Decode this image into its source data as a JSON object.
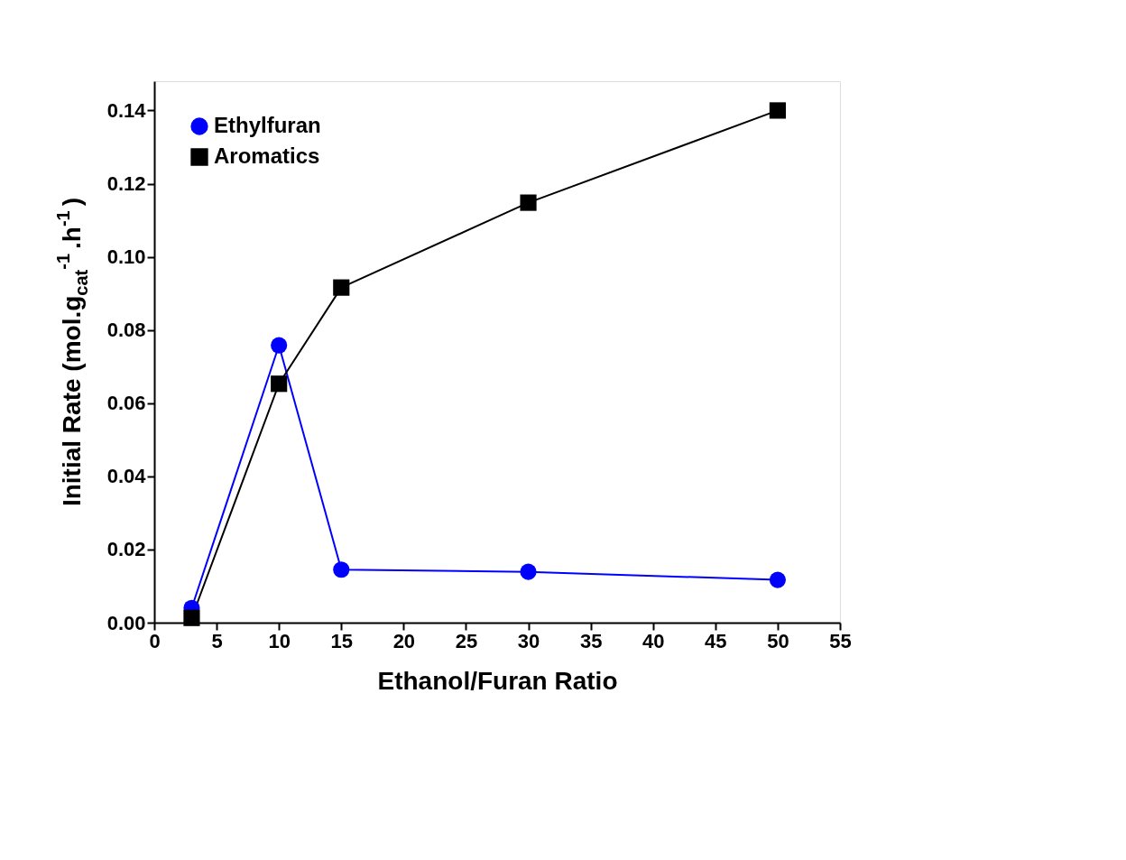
{
  "chart_data": {
    "type": "line",
    "xlabel": "Ethanol/Furan Ratio",
    "ylabel": "Initial Rate (mol.g$_{cat}$$^{-1}$.h$^{-1}$)",
    "x": [
      3,
      10,
      15,
      30,
      50
    ],
    "series": [
      {
        "name": "Ethylfuran",
        "color": "#0000ff",
        "marker": "circle",
        "values": [
          0.004,
          0.0758,
          0.0145,
          0.0139,
          0.0117
        ]
      },
      {
        "name": "Aromatics",
        "color": "#000000",
        "marker": "square",
        "values": [
          0.0013,
          0.0653,
          0.0916,
          0.1148,
          0.14
        ]
      }
    ],
    "xlim": [
      0,
      55
    ],
    "xticks": [
      0,
      5,
      10,
      15,
      20,
      25,
      30,
      35,
      40,
      45,
      50,
      55
    ],
    "ylim": [
      0,
      0.148
    ],
    "yticks": [
      {
        "value": 0,
        "label": "0.00"
      },
      {
        "value": 0.02,
        "label": "0.02"
      },
      {
        "value": 0.04,
        "label": "0.04"
      },
      {
        "value": 0.06,
        "label": "0.06"
      },
      {
        "value": 0.08,
        "label": "0.08"
      },
      {
        "value": 0.1,
        "label": "0.10"
      },
      {
        "value": 0.12,
        "label": "0.12"
      },
      {
        "value": 0.14,
        "label": "0.14"
      }
    ],
    "grid": false,
    "legend": "top left",
    "line_style": "solid"
  }
}
